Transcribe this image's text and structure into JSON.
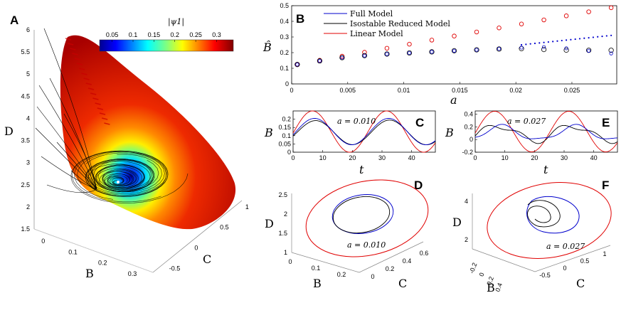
{
  "chart_data": [
    {
      "panel": "A",
      "type": "scatter",
      "title": "",
      "colorbar": {
        "label": "|ψ1|",
        "ticks": [
          "0.05",
          "0.1",
          "0.15",
          "0.2",
          "0.25",
          "0.3"
        ],
        "range": [
          0.02,
          0.34
        ],
        "colormap": "jet"
      },
      "axes": {
        "B": {
          "label": "B",
          "ticks": [
            "0",
            "0.1",
            "0.2",
            "0.3"
          ]
        },
        "C": {
          "label": "C",
          "ticks": [
            "-0.5",
            "0",
            "0.5",
            "1"
          ]
        },
        "D": {
          "label": "D",
          "ticks": [
            "1.5",
            "2",
            "2.5",
            "3",
            "3.5",
            "4",
            "4.5",
            "5",
            "5.5",
            "6"
          ],
          "range": [
            1.5,
            6
          ]
        }
      }
    },
    {
      "panel": "B",
      "type": "scatter",
      "xlabel": "a",
      "ylabel": "B̂",
      "xlim": [
        0,
        0.029
      ],
      "ylim": [
        0,
        0.5
      ],
      "xticks": [
        "0",
        "0.005",
        "0.01",
        "0.015",
        "0.02",
        "0.025"
      ],
      "yticks": [
        "0",
        "0.1",
        "0.2",
        "0.3",
        "0.4",
        "0.5"
      ],
      "legend_position": "top-left",
      "series": [
        {
          "name": "Full Model",
          "color": "#0000cc",
          "x": [
            0.0005,
            0.0025,
            0.0045,
            0.0065,
            0.0085,
            0.0105,
            0.0125,
            0.0145,
            0.0165,
            0.0185,
            0.0205,
            0.0225,
            0.0245,
            0.0265,
            0.0285
          ],
          "y": [
            0.124,
            0.147,
            0.168,
            0.181,
            0.191,
            0.198,
            0.205,
            0.212,
            0.218,
            0.224,
            0.232,
            0.236,
            0.228,
            0.212,
            0.195
          ]
        },
        {
          "name": "Isostable Reduced Model",
          "color": "#000000",
          "x": [
            0.0005,
            0.0025,
            0.0045,
            0.0065,
            0.0085,
            0.0105,
            0.0125,
            0.0145,
            0.0165,
            0.0185,
            0.0205,
            0.0225,
            0.0245,
            0.0265,
            0.0285
          ],
          "y": [
            0.124,
            0.147,
            0.168,
            0.181,
            0.191,
            0.198,
            0.205,
            0.212,
            0.218,
            0.223,
            0.226,
            0.22,
            0.216,
            0.215,
            0.215
          ]
        },
        {
          "name": "Linear Model",
          "color": "#e00000",
          "x": [
            0.0005,
            0.0025,
            0.0045,
            0.0065,
            0.0085,
            0.0105,
            0.0125,
            0.0145,
            0.0165,
            0.0185,
            0.0205,
            0.0225,
            0.0245,
            0.0265,
            0.0285
          ],
          "y": [
            0.125,
            0.151,
            0.177,
            0.202,
            0.228,
            0.254,
            0.28,
            0.306,
            0.332,
            0.358,
            0.383,
            0.409,
            0.435,
            0.461,
            0.487
          ]
        }
      ]
    },
    {
      "panel": "C",
      "type": "line",
      "xlabel": "t",
      "ylabel": "B",
      "annotation": "a = 0.010",
      "xlim": [
        0,
        48
      ],
      "ylim": [
        0,
        0.25
      ],
      "xticks": [
        "0",
        "10",
        "20",
        "30",
        "40"
      ],
      "yticks": [
        "0",
        "0.05",
        "0.1",
        "0.15",
        "0.2"
      ]
    },
    {
      "panel": "E",
      "type": "line",
      "xlabel": "t",
      "ylabel": "B",
      "annotation": "a = 0.027",
      "xlim": [
        0,
        48
      ],
      "ylim": [
        -0.2,
        0.45
      ],
      "xticks": [
        "0",
        "10",
        "20",
        "30",
        "40"
      ],
      "yticks": [
        "-0.2",
        "0",
        "0.2",
        "0.4"
      ]
    },
    {
      "panel": "D",
      "type": "line",
      "annotation": "a = 0.010",
      "axes": {
        "D": {
          "label": "D",
          "ticks": [
            "1",
            "1.5",
            "2",
            "2.5"
          ]
        },
        "B": {
          "label": "B",
          "ticks": [
            "0",
            "0.1",
            "0.2"
          ]
        },
        "C": {
          "label": "C",
          "ticks": [
            "0",
            "0.2",
            "0.4",
            "0.6"
          ]
        }
      }
    },
    {
      "panel": "F",
      "type": "line",
      "annotation": "a = 0.027",
      "axes": {
        "D": {
          "label": "D",
          "ticks": [
            "2",
            "4"
          ]
        },
        "B": {
          "label": "B",
          "ticks": [
            "-0.2",
            "0",
            "0.2",
            "0.4"
          ]
        },
        "C": {
          "label": "C",
          "ticks": [
            "-0.5",
            "0",
            "0.5",
            "1"
          ]
        }
      }
    }
  ],
  "panel_labels": {
    "A": "A",
    "B": "B",
    "C": "C",
    "D": "D",
    "E": "E",
    "F": "F"
  },
  "colors": {
    "full": "#0000cc",
    "iso": "#000000",
    "linear": "#e00000"
  }
}
